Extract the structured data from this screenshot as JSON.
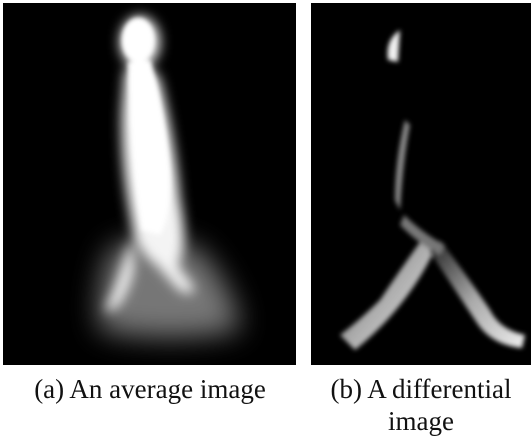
{
  "figure": {
    "panels": [
      {
        "caption_lines": [
          "(a) An average image"
        ]
      },
      {
        "caption_lines": [
          "(b) A differential",
          "image"
        ]
      }
    ]
  }
}
